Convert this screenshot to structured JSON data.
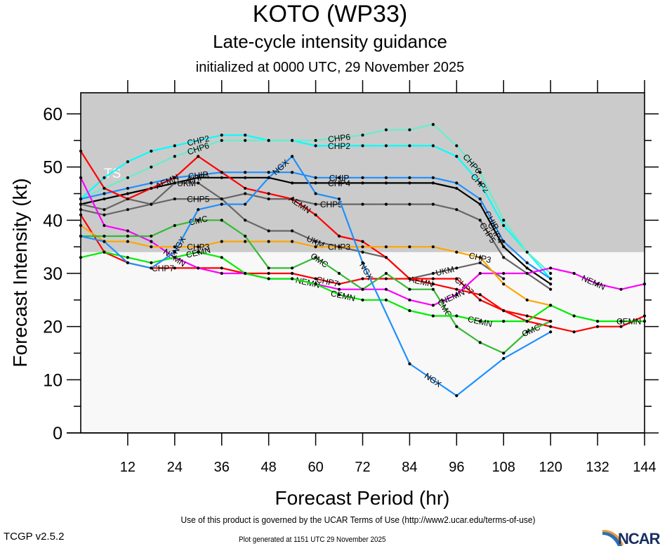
{
  "header": {
    "title": "KOTO (WP33)",
    "subtitle": "Late-cycle intensity guidance",
    "initialized": "initialized at 0000 UTC, 29 November 2025"
  },
  "footer": {
    "terms": "Use of this product is governed by the UCAR Terms of Use (http://www2.ucar.edu/terms-of-use)",
    "version": "TCGP v2.5.2",
    "generated": "Plot generated at 1151 UTC   29 November 2025",
    "logo": "NCAR"
  },
  "chart_data": {
    "type": "line",
    "title": "KOTO (WP33) Late-cycle intensity guidance",
    "xlabel": "Forecast Period (hr)",
    "ylabel": "Forecast Intensity (kt)",
    "xlim": [
      0,
      144
    ],
    "ylim": [
      0,
      64
    ],
    "x_ticks": [
      12,
      24,
      36,
      48,
      60,
      72,
      84,
      96,
      108,
      120,
      132,
      144
    ],
    "y_ticks": [
      0,
      10,
      20,
      30,
      40,
      50,
      60
    ],
    "grid": false,
    "shaded_regions": [
      {
        "label": "TS",
        "from": 34,
        "to": 64,
        "color": "#cbcbcb"
      }
    ],
    "background_color": "#f8f8f8",
    "series": [
      {
        "name": "CHP2",
        "color": "#00ffff",
        "x": [
          0,
          6,
          12,
          18,
          24,
          36,
          42,
          48,
          54,
          60,
          72,
          78,
          84,
          90,
          96,
          102,
          108,
          120
        ],
        "values": [
          44,
          48,
          51,
          53,
          54,
          56,
          56,
          55,
          55,
          54,
          54,
          54,
          54,
          54,
          52,
          47,
          39,
          29
        ],
        "labels_at": [
          30,
          66,
          102
        ]
      },
      {
        "name": "CHP6",
        "color": "#66eecc",
        "x": [
          0,
          6,
          12,
          18,
          24,
          36,
          42,
          48,
          54,
          60,
          72,
          78,
          84,
          90,
          96,
          102,
          108,
          114,
          120
        ],
        "values": [
          44,
          46,
          48,
          50,
          52,
          55,
          55,
          55,
          55,
          55,
          56,
          57,
          57,
          58,
          54,
          49,
          40,
          34,
          30
        ],
        "labels_at": [
          30,
          66,
          100
        ]
      },
      {
        "name": "CHIP",
        "color": "#1e90ff",
        "x": [
          0,
          6,
          12,
          18,
          24,
          36,
          42,
          48,
          54,
          60,
          66,
          72,
          78,
          84,
          90,
          96,
          102,
          108,
          114,
          120
        ],
        "values": [
          44,
          45,
          46,
          47,
          48,
          49,
          49,
          49,
          49,
          48,
          48,
          48,
          48,
          48,
          48,
          47,
          44,
          36,
          32,
          29
        ],
        "labels_at": [
          30,
          66,
          105
        ]
      },
      {
        "name": "CHP4",
        "color": "#000000",
        "x": [
          0,
          6,
          12,
          18,
          24,
          30,
          36,
          42,
          48,
          54,
          60,
          66,
          72,
          78,
          84,
          90,
          96,
          102,
          108,
          114,
          120
        ],
        "values": [
          43,
          44,
          45,
          46,
          47,
          48,
          48,
          48,
          48,
          47,
          47,
          47,
          47,
          47,
          47,
          47,
          46,
          43,
          35,
          31,
          28
        ],
        "labels_at": [
          30,
          66,
          106
        ]
      },
      {
        "name": "CHP5",
        "color": "#666666",
        "x": [
          0,
          6,
          12,
          18,
          24,
          36,
          42,
          48,
          54,
          60,
          72,
          78,
          84,
          90,
          96,
          102,
          108,
          120
        ],
        "values": [
          42,
          41,
          42,
          43,
          44,
          44,
          45,
          44,
          44,
          43,
          43,
          43,
          43,
          43,
          42,
          40,
          33,
          27
        ],
        "labels_at": [
          30,
          64,
          104
        ]
      },
      {
        "name": "UKM",
        "color": "#666666",
        "x": [
          0,
          6,
          12,
          18,
          24,
          30,
          36,
          42,
          48,
          54,
          60,
          66,
          72,
          78,
          84,
          90,
          96,
          102,
          108
        ],
        "values": [
          43,
          42,
          44,
          43,
          47,
          47,
          44,
          40,
          38,
          38,
          36,
          35,
          34,
          33,
          29,
          30,
          31,
          32,
          29
        ],
        "labels_at": [
          27,
          60,
          93
        ]
      },
      {
        "name": "AEMN",
        "color": "#ff0000",
        "x": [
          0,
          6,
          12,
          18,
          24,
          30,
          36,
          42,
          48,
          54,
          60,
          66,
          72,
          78,
          84,
          90,
          96,
          102,
          108,
          114,
          120
        ],
        "values": [
          53,
          46,
          44,
          46,
          48,
          52,
          49,
          46,
          45,
          44,
          41,
          37,
          36,
          33,
          29,
          28,
          27,
          26,
          23,
          22,
          21
        ],
        "labels_at": [
          22,
          56,
          87
        ]
      },
      {
        "name": "CHP7",
        "color": "#ff0000",
        "x": [
          0,
          6,
          12,
          18,
          24,
          30,
          36,
          42,
          48,
          54,
          60,
          66,
          72,
          78,
          84,
          90,
          96,
          102,
          108,
          114,
          120,
          126,
          132,
          138,
          144
        ],
        "values": [
          41,
          34,
          32,
          31,
          31,
          31,
          31,
          30,
          30,
          30,
          29,
          28,
          29,
          29,
          29,
          29,
          29,
          25,
          23,
          21,
          20,
          19,
          20,
          20,
          22
        ],
        "labels_at": [
          21,
          63,
          98
        ]
      },
      {
        "name": "NEMN",
        "color": "#ff00ff",
        "x": [
          0,
          6,
          12,
          18,
          24,
          30,
          36,
          42,
          48,
          54,
          60,
          66,
          72,
          78,
          84,
          90,
          96,
          102,
          108,
          114,
          120,
          126,
          132,
          138,
          144
        ],
        "values": [
          48,
          39,
          38,
          36,
          33,
          31,
          30,
          30,
          29,
          29,
          28,
          27,
          27,
          27,
          25,
          24,
          26,
          30,
          30,
          30,
          31,
          30,
          28,
          27,
          28
        ],
        "labels_at": [
          24,
          58,
          95,
          131
        ]
      },
      {
        "name": "CHP3",
        "color": "#ffa500",
        "x": [
          0,
          6,
          12,
          18,
          24,
          30,
          36,
          42,
          48,
          54,
          60,
          66,
          72,
          78,
          84,
          90,
          96,
          102,
          108,
          114,
          120
        ],
        "values": [
          39,
          36,
          36,
          35,
          35,
          35,
          36,
          36,
          36,
          36,
          35,
          35,
          35,
          35,
          35,
          35,
          34,
          33,
          28,
          25,
          24
        ],
        "labels_at": [
          30,
          66,
          102
        ]
      },
      {
        "name": "CMC",
        "color": "#33bb33",
        "x": [
          0,
          6,
          12,
          18,
          24,
          30,
          36,
          42,
          48,
          54,
          60,
          66,
          72,
          78,
          84,
          90,
          96,
          102,
          108,
          114,
          120
        ],
        "values": [
          37,
          37,
          37,
          37,
          39,
          40,
          40,
          37,
          31,
          31,
          33,
          30,
          27,
          30,
          27,
          27,
          20,
          17,
          15,
          19,
          21
        ],
        "labels_at": [
          30,
          61,
          93,
          115
        ]
      },
      {
        "name": "CEMN",
        "color": "#00ee00",
        "x": [
          0,
          6,
          12,
          18,
          24,
          30,
          36,
          42,
          48,
          54,
          60,
          66,
          72,
          78,
          84,
          90,
          96,
          102,
          108,
          114,
          120,
          126,
          132,
          138,
          144
        ],
        "values": [
          33,
          34,
          33,
          32,
          33,
          34,
          33,
          30,
          29,
          29,
          28,
          26,
          25,
          25,
          23,
          22,
          22,
          21,
          21,
          21,
          24,
          22,
          21,
          21,
          21
        ],
        "labels_at": [
          30,
          67,
          102,
          140
        ]
      },
      {
        "name": "NGX",
        "color": "#1e90ff",
        "x": [
          0,
          6,
          12,
          18,
          24,
          30,
          36,
          42,
          48,
          54,
          60,
          66,
          72,
          84,
          96,
          108,
          120
        ],
        "values": [
          37,
          36,
          32,
          31,
          34,
          42,
          43,
          43,
          48,
          52,
          45,
          44,
          32,
          13,
          7,
          14,
          19
        ],
        "labels_at": [
          25,
          51,
          73,
          90
        ]
      }
    ]
  }
}
